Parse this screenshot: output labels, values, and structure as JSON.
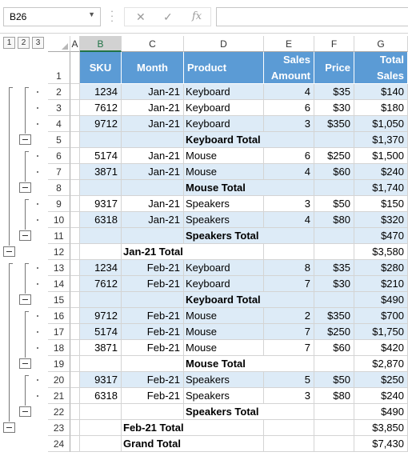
{
  "namebox": {
    "value": "B26"
  },
  "formula_bar": {
    "fx_label": "fx",
    "formula": ""
  },
  "outline_levels": [
    "1",
    "2",
    "3"
  ],
  "columns": [
    "A",
    "B",
    "C",
    "D",
    "E",
    "F",
    "G"
  ],
  "header_row": {
    "row": "1",
    "sku": "SKU",
    "month": "Month",
    "product": "Product",
    "amount_line1": "Sales",
    "amount_line2": "Amount",
    "price": "Price",
    "total_line1": "Total",
    "total_line2": "Sales"
  },
  "rows": [
    {
      "n": "2",
      "sku": "1234",
      "month": "Jan-21",
      "product": "Keyboard",
      "amount": "4",
      "price": "$35",
      "total": "$140",
      "kind": "data",
      "band": true
    },
    {
      "n": "3",
      "sku": "7612",
      "month": "Jan-21",
      "product": "Keyboard",
      "amount": "6",
      "price": "$30",
      "total": "$180",
      "kind": "data",
      "band": false
    },
    {
      "n": "4",
      "sku": "9712",
      "month": "Jan-21",
      "product": "Keyboard",
      "amount": "3",
      "price": "$350",
      "total": "$1,050",
      "kind": "data",
      "band": true
    },
    {
      "n": "5",
      "label": "Keyboard Total",
      "total": "$1,370",
      "kind": "sub",
      "band": true
    },
    {
      "n": "6",
      "sku": "5174",
      "month": "Jan-21",
      "product": "Mouse",
      "amount": "6",
      "price": "$250",
      "total": "$1,500",
      "kind": "data",
      "band": false
    },
    {
      "n": "7",
      "sku": "3871",
      "month": "Jan-21",
      "product": "Mouse",
      "amount": "4",
      "price": "$60",
      "total": "$240",
      "kind": "data",
      "band": true
    },
    {
      "n": "8",
      "label": "Mouse Total",
      "total": "$1,740",
      "kind": "sub",
      "band": true
    },
    {
      "n": "9",
      "sku": "9317",
      "month": "Jan-21",
      "product": "Speakers",
      "amount": "3",
      "price": "$50",
      "total": "$150",
      "kind": "data",
      "band": false
    },
    {
      "n": "10",
      "sku": "6318",
      "month": "Jan-21",
      "product": "Speakers",
      "amount": "4",
      "price": "$80",
      "total": "$320",
      "kind": "data",
      "band": true
    },
    {
      "n": "11",
      "label": "Speakers Total",
      "total": "$470",
      "kind": "sub",
      "band": true
    },
    {
      "n": "12",
      "label": "Jan-21 Total",
      "total": "$3,580",
      "kind": "grand",
      "band": false
    },
    {
      "n": "13",
      "sku": "1234",
      "month": "Feb-21",
      "product": "Keyboard",
      "amount": "8",
      "price": "$35",
      "total": "$280",
      "kind": "data",
      "band": true
    },
    {
      "n": "14",
      "sku": "7612",
      "month": "Feb-21",
      "product": "Keyboard",
      "amount": "7",
      "price": "$30",
      "total": "$210",
      "kind": "data",
      "band": true
    },
    {
      "n": "15",
      "label": "Keyboard Total",
      "total": "$490",
      "kind": "sub",
      "band": true
    },
    {
      "n": "16",
      "sku": "9712",
      "month": "Feb-21",
      "product": "Mouse",
      "amount": "2",
      "price": "$350",
      "total": "$700",
      "kind": "data",
      "band": true
    },
    {
      "n": "17",
      "sku": "5174",
      "month": "Feb-21",
      "product": "Mouse",
      "amount": "7",
      "price": "$250",
      "total": "$1,750",
      "kind": "data",
      "band": true
    },
    {
      "n": "18",
      "sku": "3871",
      "month": "Feb-21",
      "product": "Mouse",
      "amount": "7",
      "price": "$60",
      "total": "$420",
      "kind": "data",
      "band": false
    },
    {
      "n": "19",
      "label": "Mouse Total",
      "total": "$2,870",
      "kind": "sub",
      "band": false
    },
    {
      "n": "20",
      "sku": "9317",
      "month": "Feb-21",
      "product": "Speakers",
      "amount": "5",
      "price": "$50",
      "total": "$250",
      "kind": "data",
      "band": true
    },
    {
      "n": "21",
      "sku": "6318",
      "month": "Feb-21",
      "product": "Speakers",
      "amount": "3",
      "price": "$80",
      "total": "$240",
      "kind": "data",
      "band": false
    },
    {
      "n": "22",
      "label": "Speakers Total",
      "total": "$490",
      "kind": "sub",
      "band": false
    },
    {
      "n": "23",
      "label": "Feb-21 Total",
      "total": "$3,850",
      "kind": "grand",
      "band": false
    },
    {
      "n": "24",
      "label": "Grand Total",
      "total": "$7,430",
      "kind": "grand",
      "band": false
    }
  ],
  "colors": {
    "header_fill": "#5b9bd5",
    "band_fill": "#ddebf7",
    "excel_green": "#217346"
  }
}
